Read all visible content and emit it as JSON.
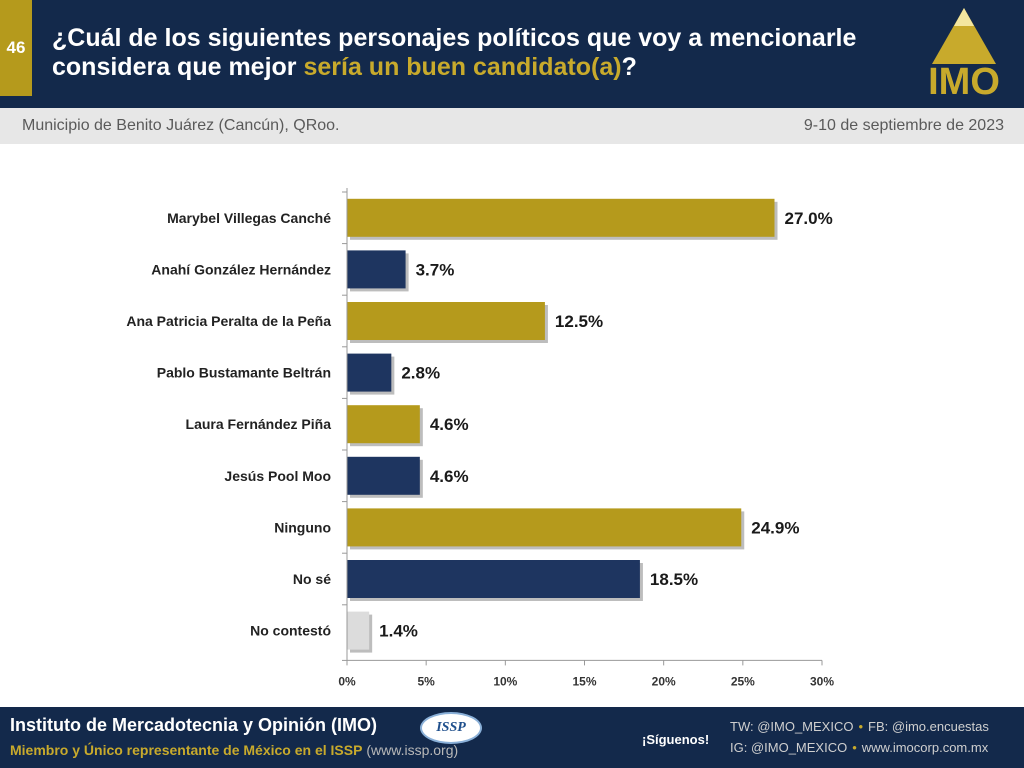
{
  "header": {
    "slide_number": "46",
    "question_part1": "¿Cuál de los siguientes personajes políticos que voy a mencionarle considera que mejor ",
    "question_highlight": "sería un buen candidato(a)",
    "question_end": "?",
    "logo_text": "IMO"
  },
  "subheader": {
    "location": "Municipio de Benito Juárez (Cancún), QRoo.",
    "date": "9-10 de septiembre de 2023"
  },
  "colors": {
    "gold": "#b59a1c",
    "navy": "#1e3560",
    "gray": "#dcdcdc"
  },
  "chart_data": {
    "type": "bar",
    "orientation": "horizontal",
    "categories": [
      "Marybel Villegas Canché",
      "Anahí González Hernández",
      "Ana Patricia Peralta de la Peña",
      "Pablo Bustamante Beltrán",
      "Laura Fernández Piña",
      "Jesús Pool Moo",
      "Ninguno",
      "No sé",
      "No contestó"
    ],
    "values": [
      27.0,
      3.7,
      12.5,
      2.8,
      4.6,
      4.6,
      24.9,
      18.5,
      1.4
    ],
    "value_labels": [
      "27.0%",
      "3.7%",
      "12.5%",
      "2.8%",
      "4.6%",
      "4.6%",
      "24.9%",
      "18.5%",
      "1.4%"
    ],
    "bar_colors": [
      "gold",
      "navy",
      "gold",
      "navy",
      "gold",
      "navy",
      "gold",
      "navy",
      "gray"
    ],
    "xlim": [
      0,
      30
    ],
    "xticks": [
      0,
      5,
      10,
      15,
      20,
      25,
      30
    ],
    "xtick_labels": [
      "0%",
      "5%",
      "10%",
      "15%",
      "20%",
      "25%",
      "30%"
    ],
    "grid": false,
    "legend": "none"
  },
  "footer": {
    "org_name": "Instituto de Mercadotecnia y Opinión (IMO)",
    "org_sub": "Miembro y Único representante de México en el ISSP",
    "org_url": " (www.issp.org)",
    "issp_logo": "ISSP",
    "follow": "¡Síguenos!",
    "tw": "TW: @IMO_MEXICO",
    "fb": "FB: @imo.encuestas",
    "ig": "IG: @IMO_MEXICO",
    "web": "www.imocorp.com.mx"
  }
}
